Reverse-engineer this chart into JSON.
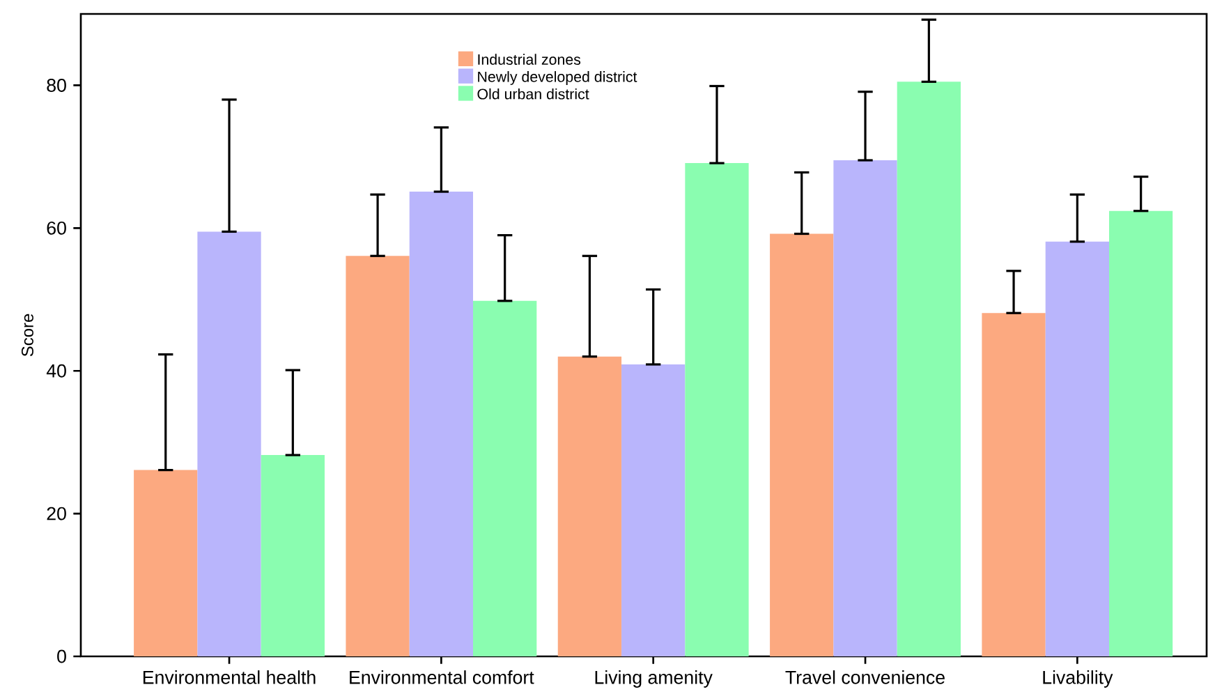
{
  "chart_data": {
    "type": "bar",
    "ylabel": "Score",
    "categories": [
      "Environmental health",
      "Environmental comfort",
      "Living amenity",
      "Travel convenience",
      "Livability"
    ],
    "series": [
      {
        "name": "Industrial zones",
        "color": "#fca980",
        "values": [
          26.1,
          56.1,
          42.0,
          59.2,
          48.1
        ],
        "errors": [
          [
            26.1,
            42.3
          ],
          [
            56.1,
            64.7
          ],
          [
            42.0,
            56.1
          ],
          [
            59.2,
            67.8
          ],
          [
            48.1,
            54.0
          ]
        ]
      },
      {
        "name": "Newly developed district",
        "color": "#b9b5fc",
        "values": [
          59.5,
          65.1,
          40.9,
          69.5,
          58.1
        ],
        "errors": [
          [
            59.5,
            78.0
          ],
          [
            65.1,
            74.1
          ],
          [
            40.9,
            51.4
          ],
          [
            69.5,
            79.1
          ],
          [
            58.1,
            64.7
          ]
        ]
      },
      {
        "name": "Old urban district",
        "color": "#8afdb0",
        "values": [
          28.2,
          49.8,
          69.1,
          80.5,
          62.4
        ],
        "errors": [
          [
            28.2,
            40.1
          ],
          [
            49.8,
            59.0
          ],
          [
            69.1,
            79.9
          ],
          [
            80.5,
            89.2
          ],
          [
            62.4,
            67.2
          ]
        ]
      }
    ],
    "ylim": [
      0,
      90
    ],
    "yticks": [
      0,
      20,
      40,
      60,
      80
    ],
    "grid": false,
    "legend": "top"
  }
}
